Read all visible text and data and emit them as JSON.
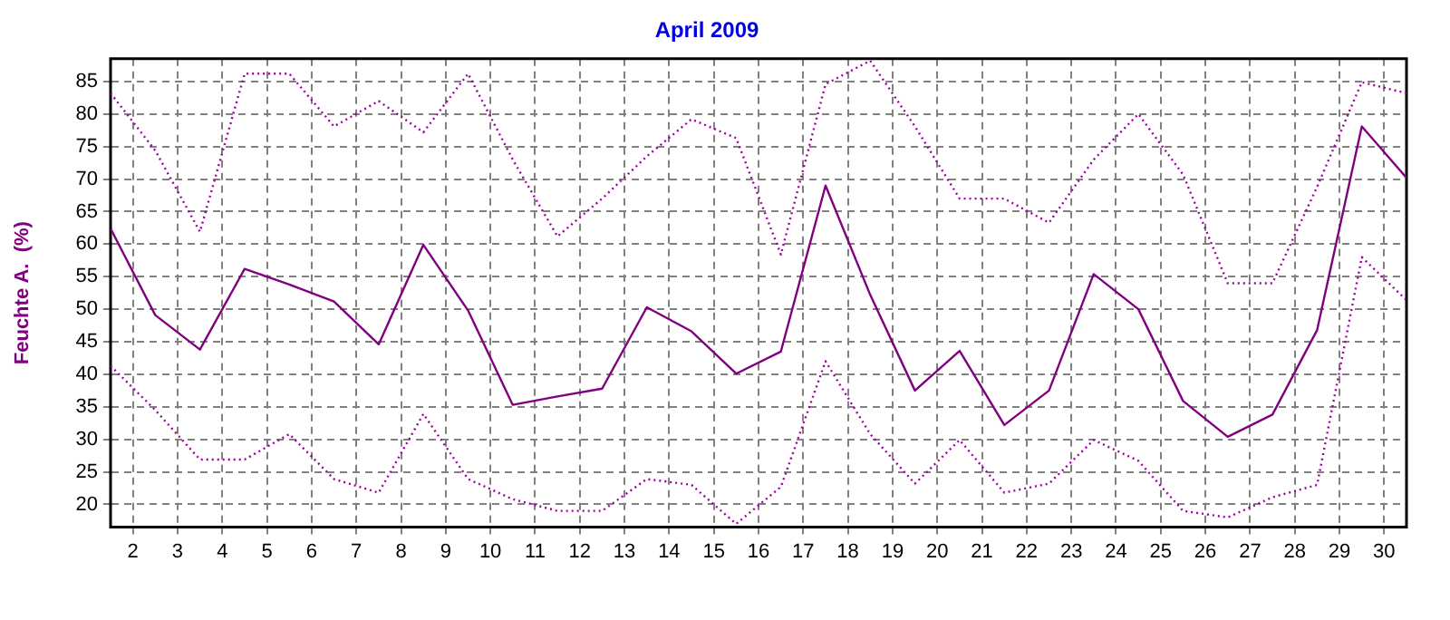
{
  "chart_data": {
    "type": "line",
    "title": "April 2009",
    "ylabel": "Feuchte A.  (%)",
    "x": [
      1.5,
      2.5,
      3.5,
      4.5,
      5.5,
      6.5,
      7.5,
      8.5,
      9.5,
      10.5,
      11.5,
      12.5,
      13.5,
      14.5,
      15.5,
      16.5,
      17.5,
      18.5,
      19.5,
      20.5,
      21.5,
      22.5,
      23.5,
      24.5,
      25.5,
      26.5,
      27.5,
      28.5,
      29.5,
      30.5
    ],
    "series": [
      {
        "color": "#a000a0",
        "line_style": "dotted",
        "values": [
          83.2,
          74.4,
          61.9,
          86.2,
          86.2,
          78.1,
          82.0,
          77.2,
          86.2,
          73.0,
          61.2,
          67.0,
          73.5,
          79.2,
          76.3,
          58.4,
          84.6,
          88.2,
          78.1,
          67.0,
          67.0,
          63.3,
          73.0,
          80.0,
          70.7,
          54.0,
          54.0,
          68.8,
          84.9,
          83.2
        ]
      },
      {
        "color": "#800080",
        "line_style": "solid",
        "values": [
          62.4,
          49.1,
          43.8,
          56.2,
          53.8,
          51.2,
          44.6,
          59.9,
          49.8,
          35.3,
          36.6,
          37.8,
          50.3,
          46.6,
          40.1,
          43.5,
          69.0,
          52.2,
          37.5,
          43.6,
          32.2,
          37.5,
          55.4,
          50.0,
          35.9,
          30.4,
          33.8,
          46.8,
          78.1,
          70.2
        ]
      },
      {
        "color": "#a000a0",
        "line_style": "dotted",
        "values": [
          41.3,
          34.5,
          26.9,
          26.9,
          30.8,
          23.9,
          21.8,
          33.9,
          23.9,
          20.8,
          19.0,
          19.0,
          23.9,
          23.0,
          17.0,
          22.7,
          42.0,
          30.8,
          23.2,
          29.9,
          21.8,
          23.2,
          29.9,
          26.7,
          19.0,
          18.0,
          21.1,
          23.0,
          58.0,
          51.4
        ]
      }
    ],
    "xlim": [
      1.5,
      30.5
    ],
    "xticks": [
      2,
      3,
      4,
      5,
      6,
      7,
      8,
      9,
      10,
      11,
      12,
      13,
      14,
      15,
      16,
      17,
      18,
      19,
      20,
      21,
      22,
      23,
      24,
      25,
      26,
      27,
      28,
      29,
      30
    ],
    "ylim": [
      16.5,
      88.5
    ],
    "yticks": [
      20,
      25,
      30,
      35,
      40,
      45,
      50,
      55,
      60,
      65,
      70,
      75,
      80,
      85
    ],
    "grid": true,
    "legend": false,
    "marker": "none"
  }
}
